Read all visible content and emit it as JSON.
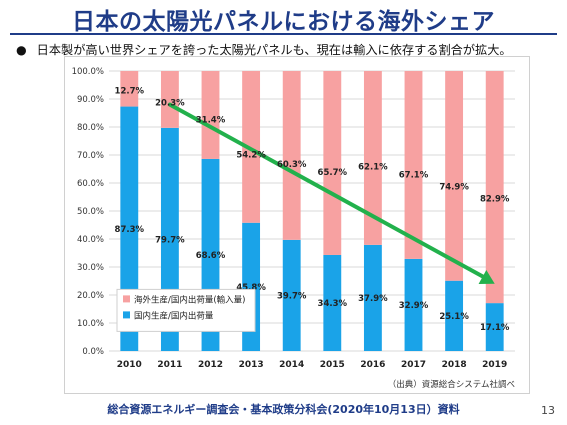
{
  "header": {
    "title": "日本の太陽光パネルにおける海外シェア",
    "bullet": "日本製が高い世界シェアを誇った太陽光パネルも、現在は輸入に依存する割合が拡大。"
  },
  "chart_data": {
    "type": "bar",
    "stacked": true,
    "categories": [
      "2010",
      "2011",
      "2012",
      "2013",
      "2014",
      "2015",
      "2016",
      "2017",
      "2018",
      "2019"
    ],
    "series": [
      {
        "name": "国内生産/国内出荷量",
        "color": "#1aa3e8",
        "values": [
          87.3,
          79.7,
          68.6,
          45.8,
          39.7,
          34.3,
          37.9,
          32.9,
          25.1,
          17.1
        ],
        "labels": [
          "87.3%",
          "79.7%",
          "68.6%",
          "45.8%",
          "39.7%",
          "34.3%",
          "37.9%",
          "32.9%",
          "25.1%",
          "17.1%"
        ]
      },
      {
        "name": "海外生産/国内出荷量(輸入量)",
        "color": "#f7a1a1",
        "values": [
          12.7,
          20.3,
          31.4,
          54.2,
          60.3,
          65.7,
          62.1,
          67.1,
          74.9,
          82.9
        ],
        "labels": [
          "12.7%",
          "20.3%",
          "31.4%",
          "54.2%",
          "60.3%",
          "65.7%",
          "62.1%",
          "67.1%",
          "74.9%",
          "82.9%"
        ]
      }
    ],
    "yticks": [
      "0.0%",
      "10.0%",
      "20.0%",
      "30.0%",
      "40.0%",
      "50.0%",
      "60.0%",
      "70.0%",
      "80.0%",
      "90.0%",
      "100.0%"
    ],
    "ylim": [
      0,
      100
    ],
    "grid": true,
    "legend_position": "bottom-left",
    "trend_arrow": {
      "color": "#22b14c",
      "from": {
        "x": "2011",
        "y": 88
      },
      "to": {
        "x": "2019",
        "y": 24
      }
    },
    "source_note": "（出典）資源総合システム社調べ"
  },
  "footer": {
    "text": "総合資源エネルギー調査会・基本政策分科会(2020年10月13日）資料",
    "page": "13"
  }
}
